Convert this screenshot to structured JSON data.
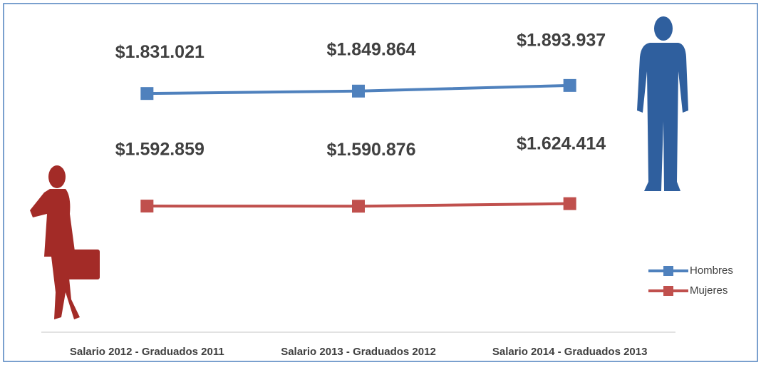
{
  "chart_data": {
    "type": "line",
    "categories": [
      "Salario 2012 - Graduados 2011",
      "Salario 2013 - Graduados 2012",
      "Salario 2014 - Graduados 2013"
    ],
    "series": [
      {
        "name": "Hombres",
        "color": "#4f81bd",
        "values": [
          1831021,
          1849864,
          1893937
        ],
        "value_labels": [
          "$1.831.021",
          "$1.849.864",
          "$1.893.937"
        ]
      },
      {
        "name": "Mujeres",
        "color": "#c0504d",
        "axis": "y2",
        "values": [
          1592859,
          1590876,
          1624414
        ],
        "value_labels": [
          "$1.592.859",
          "$1.590.876",
          "$1.624.414"
        ]
      }
    ],
    "ylim": [
      0,
      2450000
    ],
    "y2lim": [
      0,
      4100000
    ],
    "legend": "right"
  }
}
